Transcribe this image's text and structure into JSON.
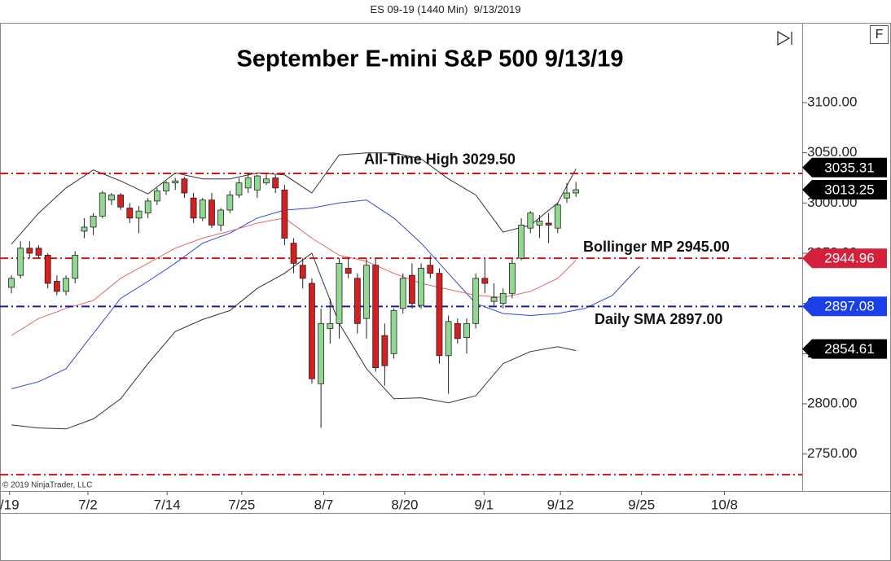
{
  "chart_data": {
    "type": "candlestick",
    "header": "ES 09-19 (1440 Min)  9/13/2019",
    "title": "September E-mini S&P 500 9/13/19",
    "copyright": "© 2019 NinjaTrader, LLC",
    "button": "F",
    "up_color": "#92d892",
    "down_color": "#d42020",
    "open": [
      2916,
      2928,
      2955,
      2955,
      2948,
      2922,
      2912,
      2925,
      2972,
      2976,
      2987,
      3003,
      3008,
      2995,
      2985,
      2990,
      3002,
      3012,
      3020,
      3024,
      3005,
      2985,
      3003,
      2978,
      2993,
      3008,
      3015,
      3013,
      3020,
      3025,
      3013,
      2960,
      2938,
      2920,
      2820,
      2875,
      2880,
      2935,
      2925,
      2885,
      2938,
      2868,
      2850,
      2895,
      2928,
      2898,
      2938,
      2930,
      2848,
      2880,
      2866,
      2880,
      2925,
      2902,
      2900,
      2910,
      2945,
      2975,
      2978,
      2980,
      2975,
      3005,
      3010
    ],
    "high": [
      2928,
      2962,
      2962,
      2958,
      2950,
      2928,
      2928,
      2952,
      2985,
      2990,
      3012,
      3010,
      3010,
      3000,
      2997,
      3005,
      3015,
      3022,
      3025,
      3026,
      3010,
      3005,
      3010,
      2995,
      3012,
      3025,
      3030,
      3028,
      3029,
      3028,
      3018,
      2965,
      2945,
      2925,
      2895,
      2905,
      2945,
      2945,
      2930,
      2945,
      2945,
      2880,
      2895,
      2930,
      2940,
      2940,
      2948,
      2935,
      2888,
      2885,
      2885,
      2930,
      2945,
      2920,
      2915,
      2945,
      2985,
      2992,
      2988,
      2990,
      3000,
      3020,
      3021
    ],
    "low": [
      2910,
      2925,
      2945,
      2945,
      2915,
      2908,
      2908,
      2920,
      2965,
      2968,
      2985,
      2998,
      2993,
      2980,
      2970,
      2985,
      2998,
      3008,
      3013,
      3005,
      2980,
      2982,
      2975,
      2972,
      2990,
      3005,
      3010,
      3005,
      3018,
      3010,
      2958,
      2930,
      2915,
      2820,
      2776,
      2860,
      2865,
      2925,
      2870,
      2865,
      2832,
      2818,
      2845,
      2890,
      2895,
      2895,
      2925,
      2840,
      2810,
      2860,
      2850,
      2875,
      2910,
      2898,
      2895,
      2905,
      2943,
      2970,
      2965,
      2960,
      2970,
      3000,
      3006
    ],
    "close": [
      2925,
      2955,
      2950,
      2948,
      2920,
      2912,
      2925,
      2948,
      2976,
      2987,
      3010,
      3008,
      2996,
      2985,
      2992,
      3002,
      3012,
      3020,
      3022,
      3010,
      2985,
      3003,
      2978,
      2993,
      3008,
      3020,
      3025,
      3027,
      3024,
      3015,
      2965,
      2940,
      2925,
      2825,
      2880,
      2880,
      2940,
      2930,
      2880,
      2938,
      2836,
      2838,
      2893,
      2925,
      2900,
      2935,
      2930,
      2848,
      2882,
      2865,
      2880,
      2925,
      2920,
      2906,
      2910,
      2940,
      2978,
      2990,
      2982,
      2978,
      2998,
      3010,
      3013.25
    ],
    "lines": [
      {
        "color": "#333333",
        "x": [
          0,
          3,
          6,
          9,
          12,
          15,
          18,
          21,
          24,
          27,
          30,
          33,
          36,
          39,
          42,
          45,
          48,
          51,
          54,
          57,
          60,
          62
        ],
        "values": [
          2959,
          2990,
          3015,
          3033,
          3022,
          3009,
          3030,
          3024,
          3024,
          3030,
          3028,
          3010,
          3048,
          3050,
          3050,
          3044,
          3024,
          3008,
          2971,
          2978,
          3000,
          3034
        ]
      },
      {
        "color": "#333333",
        "x": [
          0,
          3,
          6,
          9,
          12,
          15,
          18,
          21,
          24,
          27,
          30,
          33,
          36,
          39,
          42,
          45,
          48,
          51,
          54,
          57,
          60,
          62
        ],
        "values": [
          2779,
          2776,
          2775,
          2785,
          2805,
          2840,
          2872,
          2884,
          2893,
          2915,
          2930,
          2950,
          2880,
          2835,
          2805,
          2806,
          2801,
          2808,
          2840,
          2852,
          2857,
          2853
        ]
      },
      {
        "color": "#3344dd",
        "x": [
          0,
          3,
          6,
          9,
          12,
          15,
          18,
          21,
          24,
          27,
          30,
          33,
          36,
          39,
          42,
          45,
          48,
          51,
          54,
          57,
          60,
          63,
          66,
          69
        ],
        "values": [
          2815,
          2822,
          2835,
          2870,
          2905,
          2922,
          2940,
          2960,
          2970,
          2985,
          2993,
          2995,
          3000,
          3003,
          2985,
          2960,
          2930,
          2900,
          2890,
          2888,
          2890,
          2895,
          2908,
          2937
        ]
      },
      {
        "color": "#e06868",
        "x": [
          0,
          3,
          6,
          9,
          12,
          15,
          18,
          21,
          24,
          27,
          30,
          33,
          36,
          39,
          42,
          45,
          48,
          51,
          54,
          57,
          60,
          62
        ],
        "values": [
          2868,
          2885,
          2895,
          2903,
          2925,
          2940,
          2955,
          2965,
          2972,
          2980,
          2985,
          2965,
          2948,
          2942,
          2930,
          2920,
          2914,
          2908,
          2906,
          2912,
          2925,
          2943
        ]
      }
    ],
    "hlines": [
      {
        "value": 3029.5,
        "color": "#d81818",
        "label": "All-Time High 3029.50"
      },
      {
        "value": 2945,
        "color": "#d81818",
        "label": "Bollinger MP 2945.00"
      },
      {
        "value": 2897,
        "color": "#1a1aa8",
        "label": "Daily SMA 2897.00"
      },
      {
        "value": 2729.5,
        "color": "#d81818"
      }
    ],
    "price_markers": [
      {
        "value": 3035.31,
        "color": "#000000"
      },
      {
        "value": 3013.25,
        "color": "#000000"
      },
      {
        "value": 2944.96,
        "color": "#d4203a"
      },
      {
        "value": 2897.08,
        "color": "#1a3ee8"
      },
      {
        "value": 2854.61,
        "color": "#000000"
      }
    ],
    "ylim": [
      2713.2,
      3179.5
    ],
    "yticks": [
      {
        "value": 2750,
        "label": "2750.00"
      },
      {
        "value": 2800,
        "label": "2800.00"
      },
      {
        "value": 2850,
        "label": "2850.00"
      },
      {
        "value": 2900,
        "label": "2900.00"
      },
      {
        "value": 2950,
        "label": "2950.00"
      },
      {
        "value": 3000,
        "label": "3000.00"
      },
      {
        "value": 3050,
        "label": "3050.00"
      },
      {
        "value": 3100,
        "label": "3100.00"
      }
    ],
    "xlim": [
      -1.25,
      86.85
    ],
    "xticks": [
      {
        "value": -0.2,
        "label": "/19"
      },
      {
        "value": 8.4,
        "label": "7/2"
      },
      {
        "value": 17.1,
        "label": "7/14"
      },
      {
        "value": 25.3,
        "label": "7/25"
      },
      {
        "value": 34.3,
        "label": "8/7"
      },
      {
        "value": 43.2,
        "label": "8/20"
      },
      {
        "value": 51.9,
        "label": "9/1"
      },
      {
        "value": 60.3,
        "label": "9/12"
      },
      {
        "value": 69.2,
        "label": "9/25"
      },
      {
        "value": 78.3,
        "label": "10/8"
      }
    ]
  }
}
